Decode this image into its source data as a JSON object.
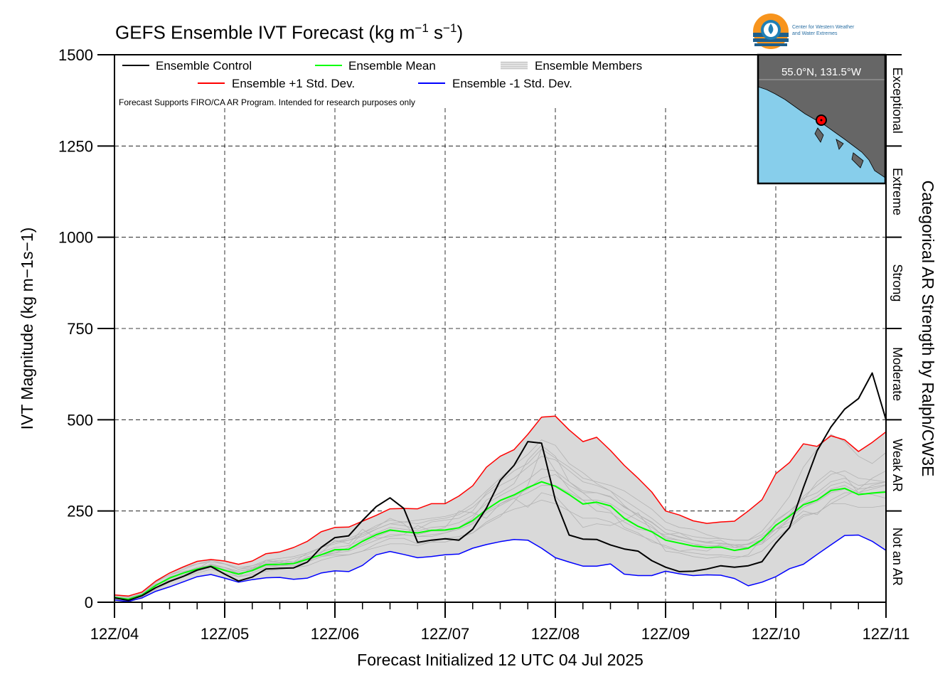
{
  "title": {
    "prefix": "GEFS Ensemble IVT Forecast (kg m",
    "exp1": "−1",
    "mid": " s",
    "exp2": "−1",
    "suffix": ")"
  },
  "logo": {
    "line1": "Center for Western Weather",
    "line2": "and Water Extremes"
  },
  "note": "Forecast Supports FIRO/CA AR Program. Intended for research purposes only",
  "inset": {
    "location": "55.0°N, 131.5°W",
    "land_color": "#666666",
    "water_color": "#87ceeb",
    "marker_color": "#ff0000"
  },
  "chart_data": {
    "type": "line",
    "title": "GEFS Ensemble IVT Forecast (kg m−1 s−1)",
    "xlabel": "Forecast Initialized 12 UTC 04 Jul 2025",
    "ylabel": "IVT Magnitude (kg m−1s−1)",
    "right_label": "Categorical AR Strength by Ralph/CW3E",
    "x_ticks": [
      "12Z/04",
      "12Z/05",
      "12Z/06",
      "12Z/07",
      "12Z/08",
      "12Z/09",
      "12Z/10",
      "12Z/11"
    ],
    "x_range_hours": [
      0,
      168
    ],
    "x_step_hours": 3,
    "ylim": [
      0,
      1500
    ],
    "y_ticks": [
      0,
      250,
      500,
      750,
      1000,
      1250,
      1500
    ],
    "grid": true,
    "legend_position": "top-left",
    "categories_right": [
      {
        "label": "Not an AR",
        "range": [
          0,
          250
        ]
      },
      {
        "label": "Weak AR",
        "range": [
          250,
          500
        ]
      },
      {
        "label": "Moderate",
        "range": [
          500,
          750
        ]
      },
      {
        "label": "Strong",
        "range": [
          750,
          1000
        ]
      },
      {
        "label": "Extreme",
        "range": [
          1000,
          1250
        ]
      },
      {
        "label": "Exceptional",
        "range": [
          1250,
          1500
        ]
      }
    ],
    "legend": [
      {
        "name": "Ensemble Control",
        "color": "#000000"
      },
      {
        "name": "Ensemble Mean",
        "color": "#00ff00"
      },
      {
        "name": "Ensemble Members",
        "color": "#aaaaaa"
      },
      {
        "name": "Ensemble +1 Std. Dev.",
        "color": "#ff0000"
      },
      {
        "name": "Ensemble -1 Std. Dev.",
        "color": "#0000ff"
      }
    ],
    "series": [
      {
        "name": "Ensemble Control",
        "color": "#000000",
        "width": 2,
        "values": [
          12,
          5,
          18,
          40,
          57,
          71,
          88,
          98,
          77,
          58,
          69,
          91,
          93,
          94,
          110,
          150,
          177,
          182,
          224,
          262,
          286,
          257,
          164,
          170,
          174,
          170,
          200,
          258,
          334,
          375,
          440,
          436,
          280,
          184,
          173,
          172,
          157,
          146,
          140,
          114,
          96,
          84,
          85,
          91,
          100,
          96,
          100,
          111,
          162,
          205,
          314,
          415,
          480,
          529,
          558,
          628,
          500
        ]
      },
      {
        "name": "Ensemble Mean",
        "color": "#00ff00",
        "width": 2,
        "values": [
          13,
          8,
          20,
          46,
          66,
          80,
          91,
          99,
          87,
          77,
          87,
          103,
          104,
          106,
          118,
          130,
          144,
          145,
          167,
          185,
          198,
          193,
          190,
          197,
          198,
          204,
          224,
          254,
          279,
          294,
          314,
          330,
          318,
          295,
          269,
          274,
          264,
          230,
          208,
          193,
          170,
          162,
          154,
          150,
          151,
          142,
          148,
          171,
          211,
          236,
          267,
          280,
          306,
          312,
          295,
          299,
          302
        ]
      },
      {
        "name": "Ensemble +1 Std. Dev.",
        "color": "#ff0000",
        "width": 1.5,
        "values": [
          20,
          17,
          28,
          58,
          80,
          97,
          112,
          117,
          113,
          104,
          113,
          133,
          138,
          150,
          167,
          193,
          205,
          206,
          222,
          238,
          256,
          257,
          256,
          270,
          270,
          291,
          319,
          370,
          400,
          418,
          460,
          507,
          510,
          472,
          440,
          452,
          416,
          375,
          340,
          302,
          250,
          239,
          223,
          216,
          220,
          222,
          250,
          281,
          352,
          383,
          434,
          427,
          456,
          445,
          413,
          438,
          467
        ]
      },
      {
        "name": "Ensemble -1 Std. Dev.",
        "color": "#0000ff",
        "width": 1.5,
        "values": [
          6,
          2,
          12,
          30,
          42,
          56,
          70,
          76,
          66,
          55,
          62,
          67,
          68,
          63,
          66,
          80,
          86,
          84,
          101,
          130,
          139,
          131,
          122,
          125,
          130,
          132,
          148,
          158,
          166,
          172,
          170,
          148,
          122,
          110,
          99,
          99,
          105,
          77,
          73,
          73,
          85,
          78,
          73,
          75,
          74,
          65,
          45,
          55,
          70,
          92,
          104,
          131,
          157,
          183,
          184,
          167,
          142
        ]
      }
    ],
    "member_series": [
      {
        "values": [
          10,
          10,
          25,
          50,
          60,
          70,
          85,
          105,
          95,
          80,
          85,
          115,
          110,
          105,
          110,
          135,
          170,
          160,
          200,
          175,
          180,
          185,
          210,
          195,
          205,
          250,
          245,
          230,
          270,
          285,
          260,
          300,
          290,
          250,
          205,
          215,
          210,
          225,
          245,
          195,
          140,
          135,
          125,
          120,
          125,
          120,
          130,
          175,
          200,
          220,
          250,
          240,
          280,
          300,
          300,
          295,
          285
        ]
      },
      {
        "values": [
          20,
          15,
          20,
          55,
          75,
          85,
          90,
          95,
          80,
          70,
          95,
          100,
          100,
          105,
          125,
          130,
          135,
          150,
          190,
          205,
          230,
          215,
          180,
          180,
          190,
          205,
          230,
          280,
          300,
          325,
          390,
          430,
          400,
          330,
          300,
          270,
          250,
          205,
          190,
          165,
          155,
          140,
          145,
          140,
          160,
          155,
          160,
          170,
          225,
          250,
          280,
          330,
          360,
          345,
          300,
          320,
          330
        ]
      },
      {
        "values": [
          15,
          5,
          10,
          45,
          70,
          80,
          95,
          100,
          90,
          70,
          80,
          95,
          100,
          100,
          110,
          125,
          130,
          130,
          140,
          160,
          175,
          175,
          160,
          165,
          175,
          180,
          190,
          215,
          235,
          275,
          320,
          420,
          360,
          310,
          280,
          250,
          245,
          220,
          200,
          195,
          185,
          190,
          170,
          165,
          170,
          150,
          160,
          180,
          200,
          210,
          240,
          245,
          270,
          290,
          310,
          340,
          360
        ]
      },
      {
        "values": [
          10,
          10,
          15,
          40,
          60,
          75,
          90,
          115,
          105,
          90,
          100,
          110,
          115,
          110,
          135,
          150,
          160,
          170,
          180,
          200,
          215,
          210,
          200,
          220,
          225,
          230,
          250,
          300,
          330,
          360,
          380,
          420,
          395,
          370,
          340,
          330,
          320,
          305,
          280,
          255,
          220,
          205,
          200,
          185,
          175,
          170,
          170,
          195,
          240,
          290,
          370,
          420,
          460,
          440,
          400,
          380,
          410
        ]
      },
      {
        "values": [
          15,
          10,
          25,
          55,
          80,
          95,
          105,
          110,
          105,
          90,
          95,
          110,
          110,
          120,
          130,
          150,
          165,
          175,
          190,
          210,
          225,
          220,
          225,
          230,
          235,
          245,
          270,
          305,
          340,
          375,
          405,
          445,
          430,
          380,
          355,
          325,
          305,
          265,
          235,
          210,
          175,
          170,
          160,
          150,
          155,
          150,
          150,
          160,
          210,
          240,
          290,
          320,
          350,
          360,
          340,
          335,
          330
        ]
      },
      {
        "values": [
          12,
          8,
          20,
          45,
          65,
          80,
          90,
          100,
          95,
          85,
          90,
          105,
          100,
          105,
          115,
          130,
          140,
          145,
          160,
          180,
          195,
          195,
          185,
          195,
          195,
          205,
          220,
          250,
          270,
          290,
          310,
          340,
          350,
          320,
          300,
          300,
          290,
          260,
          240,
          220,
          190,
          180,
          170,
          165,
          160,
          155,
          150,
          160,
          190,
          230,
          260,
          280,
          310,
          320,
          300,
          310,
          320
        ]
      },
      {
        "values": [
          8,
          5,
          15,
          35,
          55,
          70,
          80,
          90,
          80,
          70,
          75,
          85,
          90,
          95,
          100,
          115,
          125,
          130,
          140,
          150,
          160,
          160,
          155,
          165,
          165,
          175,
          190,
          220,
          240,
          255,
          265,
          280,
          270,
          250,
          230,
          230,
          220,
          200,
          185,
          170,
          150,
          140,
          135,
          130,
          130,
          125,
          125,
          140,
          175,
          205,
          235,
          245,
          270,
          270,
          260,
          260,
          265
        ]
      },
      {
        "values": [
          18,
          12,
          25,
          55,
          75,
          90,
          105,
          115,
          105,
          95,
          100,
          115,
          120,
          125,
          135,
          150,
          165,
          170,
          185,
          200,
          215,
          220,
          215,
          225,
          230,
          240,
          260,
          295,
          320,
          340,
          370,
          400,
          390,
          360,
          330,
          320,
          305,
          280,
          255,
          230,
          200,
          190,
          180,
          175,
          175,
          170,
          170,
          185,
          220,
          250,
          285,
          300,
          330,
          340,
          320,
          325,
          330
        ]
      },
      {
        "values": [
          10,
          8,
          18,
          40,
          60,
          75,
          85,
          95,
          90,
          80,
          85,
          100,
          100,
          100,
          110,
          125,
          135,
          140,
          155,
          170,
          185,
          185,
          180,
          185,
          190,
          200,
          215,
          245,
          265,
          285,
          300,
          320,
          320,
          300,
          280,
          280,
          270,
          245,
          225,
          205,
          180,
          170,
          160,
          155,
          155,
          150,
          150,
          165,
          200,
          230,
          260,
          275,
          300,
          310,
          295,
          300,
          305
        ]
      },
      {
        "values": [
          14,
          9,
          22,
          48,
          68,
          82,
          95,
          102,
          95,
          85,
          92,
          106,
          108,
          110,
          122,
          138,
          150,
          155,
          172,
          190,
          205,
          200,
          195,
          205,
          208,
          218,
          238,
          270,
          292,
          312,
          335,
          365,
          360,
          330,
          305,
          300,
          288,
          262,
          240,
          218,
          190,
          178,
          170,
          162,
          162,
          158,
          158,
          172,
          208,
          238,
          270,
          290,
          320,
          330,
          310,
          315,
          322
        ]
      }
    ]
  }
}
